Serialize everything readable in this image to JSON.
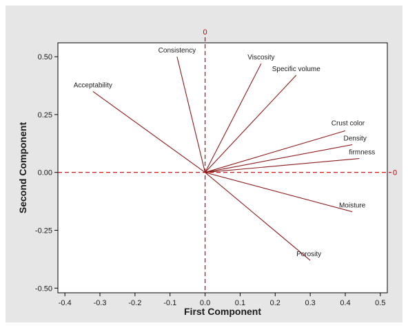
{
  "colors": {
    "background": "#e6e6e6",
    "plot_area": "#ffffff",
    "vector": "#8b1a1a",
    "reference_line": "#c00000",
    "axis": "#000000"
  },
  "chart_data": {
    "type": "scatter",
    "subtype": "loading-plot",
    "title": "",
    "xlabel": "First Component",
    "ylabel": "Second Component",
    "xlim": [
      -0.42,
      0.52
    ],
    "ylim": [
      -0.52,
      0.56
    ],
    "xticks": [
      -0.4,
      -0.3,
      -0.2,
      -0.1,
      0.0,
      0.1,
      0.2,
      0.3,
      0.4,
      0.5
    ],
    "xtick_labels": [
      "-0.4",
      "-0.3",
      "-0.2",
      "-0.1",
      "0.0",
      "0.1",
      "0.2",
      "0.3",
      "0.4",
      "0.5"
    ],
    "yticks": [
      -0.5,
      -0.25,
      0.0,
      0.25,
      0.5
    ],
    "ytick_labels": [
      "-0.50",
      "-0.25",
      "0.00",
      "0.25",
      "0.50"
    ],
    "reference_lines": {
      "x_value": 0,
      "y_value": 0,
      "x_label": "0",
      "y_label": "0"
    },
    "grid": false,
    "legend": "none",
    "variables": [
      {
        "name": "Consistency",
        "x": -0.08,
        "y": 0.5
      },
      {
        "name": "Viscosity",
        "x": 0.16,
        "y": 0.47
      },
      {
        "name": "Specific volume",
        "x": 0.26,
        "y": 0.42
      },
      {
        "name": "Acceptability",
        "x": -0.32,
        "y": 0.35
      },
      {
        "name": "Crust color",
        "x": 0.4,
        "y": 0.18
      },
      {
        "name": "Density",
        "x": 0.42,
        "y": 0.12
      },
      {
        "name": "firmness",
        "x": 0.44,
        "y": 0.06
      },
      {
        "name": "Moisture",
        "x": 0.42,
        "y": -0.17
      },
      {
        "name": "Porosity",
        "x": 0.3,
        "y": -0.38
      }
    ]
  }
}
